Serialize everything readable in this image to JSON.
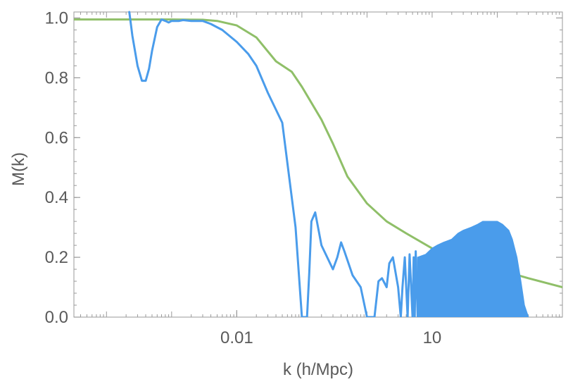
{
  "chart_data": {
    "type": "line",
    "title": "",
    "xlabel": "k  (h/Mpc)",
    "ylabel": "M(k)",
    "x_scale": "log",
    "xlim": [
      3.16e-05,
      1000
    ],
    "ylim": [
      0,
      1.02
    ],
    "x_ticks": [
      {
        "value": 0.01,
        "label": "0.01"
      },
      {
        "value": 10,
        "label": "10"
      }
    ],
    "y_ticks": [
      {
        "value": 0.0,
        "label": "0.0"
      },
      {
        "value": 0.2,
        "label": "0.2"
      },
      {
        "value": 0.4,
        "label": "0.4"
      },
      {
        "value": 0.6,
        "label": "0.6"
      },
      {
        "value": 0.8,
        "label": "0.8"
      },
      {
        "value": 1.0,
        "label": "1.0"
      }
    ],
    "grid": false,
    "series": [
      {
        "color": "#8fbf68",
        "x": [
          3.16e-05,
          0.001,
          0.003,
          0.005,
          0.01,
          0.02,
          0.04,
          0.07,
          0.1,
          0.2,
          0.3,
          0.5,
          1,
          2,
          4,
          10,
          30,
          100,
          300,
          1000
        ],
        "y": [
          0.995,
          0.995,
          0.994,
          0.99,
          0.975,
          0.935,
          0.855,
          0.82,
          0.77,
          0.66,
          0.58,
          0.47,
          0.38,
          0.32,
          0.28,
          0.23,
          0.195,
          0.16,
          0.13,
          0.1
        ]
      },
      {
        "color": "#4a9ceb",
        "x": [
          0.000224,
          0.00025,
          0.0003,
          0.00035,
          0.0004,
          0.00045,
          0.0005,
          0.0006,
          0.0007,
          0.0008,
          0.0009,
          0.001,
          0.0013,
          0.0015,
          0.002,
          0.003,
          0.004,
          0.006,
          0.01,
          0.015,
          0.02,
          0.03,
          0.05,
          0.08,
          0.1,
          0.12,
          0.13,
          0.14,
          0.16,
          0.2,
          0.3,
          0.35,
          0.4,
          0.45,
          0.6,
          0.8,
          1,
          1.3,
          1.5,
          1.7,
          2,
          2.2,
          2.5,
          3,
          3.3,
          3.5,
          3.8,
          4.2,
          4.5,
          5,
          5.2,
          5.4,
          5.6,
          6
        ],
        "y": [
          1.02,
          0.94,
          0.84,
          0.79,
          0.79,
          0.83,
          0.89,
          0.97,
          0.995,
          0.99,
          0.985,
          0.99,
          0.99,
          0.993,
          0.99,
          0.99,
          0.98,
          0.96,
          0.92,
          0.88,
          0.84,
          0.75,
          0.65,
          0.3,
          0.0,
          0.0,
          0.15,
          0.32,
          0.35,
          0.24,
          0.16,
          0.2,
          0.25,
          0.22,
          0.14,
          0.1,
          0.0,
          0.0,
          0.12,
          0.13,
          0.1,
          0.18,
          0.2,
          0.1,
          0.0,
          0.1,
          0.2,
          0.0,
          0.21,
          0.0,
          0.2,
          0.0,
          0.22,
          0.0
        ]
      },
      {
        "color": "#4a9ceb",
        "fill": true,
        "x": [
          6,
          8,
          10,
          12,
          15,
          20,
          25,
          30,
          40,
          50,
          60,
          80,
          100,
          120,
          150,
          170,
          200,
          230,
          260,
          300
        ],
        "y": [
          0.2,
          0.21,
          0.23,
          0.24,
          0.25,
          0.26,
          0.28,
          0.29,
          0.3,
          0.31,
          0.32,
          0.32,
          0.32,
          0.31,
          0.29,
          0.26,
          0.2,
          0.12,
          0.04,
          0.0
        ]
      }
    ]
  }
}
